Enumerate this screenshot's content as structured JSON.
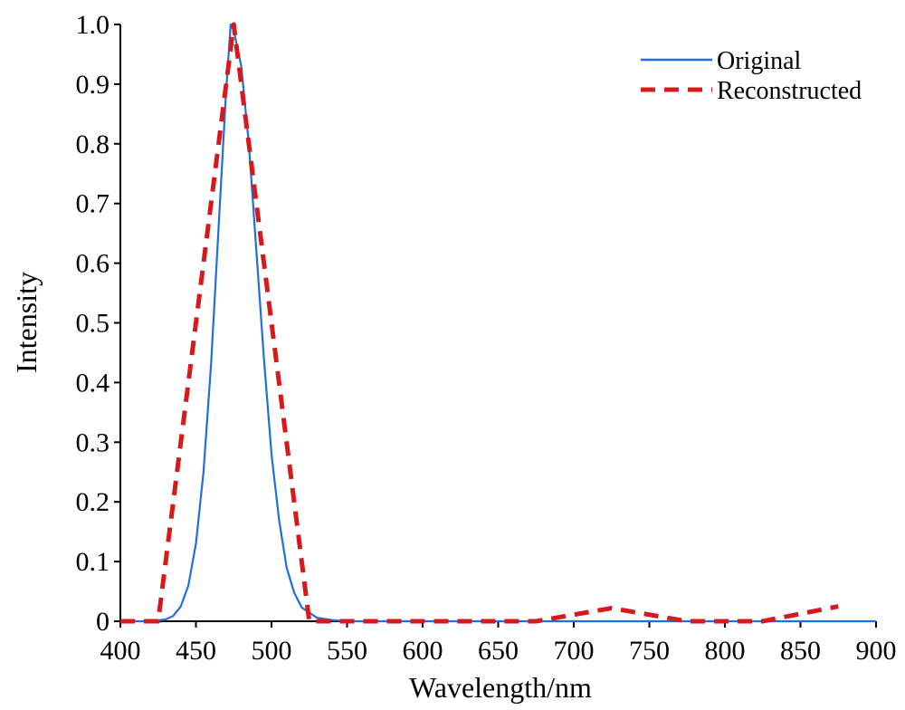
{
  "chart_data": {
    "type": "line",
    "title": "",
    "xlabel": "Wavelength/nm",
    "ylabel": "Intensity",
    "xlim": [
      400,
      900
    ],
    "ylim": [
      0,
      1.0
    ],
    "xticks": [
      400,
      450,
      500,
      550,
      600,
      650,
      700,
      750,
      800,
      850,
      900
    ],
    "yticks": [
      0,
      0.1,
      0.2,
      0.3,
      0.4,
      0.5,
      0.6,
      0.7,
      0.8,
      0.9,
      1.0
    ],
    "xtick_labels": [
      "400",
      "450",
      "500",
      "550",
      "600",
      "650",
      "700",
      "750",
      "800",
      "850",
      "900"
    ],
    "ytick_labels": [
      "0",
      "0.1",
      "0.2",
      "0.3",
      "0.4",
      "0.5",
      "0.6",
      "0.7",
      "0.8",
      "0.9",
      "1.0"
    ],
    "grid": false,
    "legend_position": "top-right",
    "series": [
      {
        "name": "Original",
        "color": "#1f6fdc",
        "style": "solid",
        "x": [
          400,
          420,
          430,
          435,
          440,
          445,
          450,
          455,
          460,
          465,
          470,
          473,
          475,
          480,
          485,
          490,
          495,
          500,
          505,
          510,
          515,
          520,
          530,
          540,
          550,
          600,
          650,
          700,
          750,
          800,
          850,
          900
        ],
        "y": [
          0,
          0,
          0.003,
          0.009,
          0.025,
          0.06,
          0.13,
          0.25,
          0.43,
          0.66,
          0.89,
          1.0,
          0.99,
          0.93,
          0.8,
          0.62,
          0.44,
          0.28,
          0.17,
          0.09,
          0.048,
          0.023,
          0.006,
          0.002,
          0.0,
          0,
          0,
          0,
          0,
          0,
          0,
          0
        ]
      },
      {
        "name": "Reconstructed",
        "color": "#d7191c",
        "style": "dashed",
        "x": [
          400,
          425,
          475,
          525,
          575,
          625,
          675,
          725,
          775,
          825,
          875
        ],
        "y": [
          0,
          0,
          1.0,
          0,
          0,
          0,
          0,
          0.022,
          0,
          0,
          0.025
        ]
      }
    ]
  }
}
